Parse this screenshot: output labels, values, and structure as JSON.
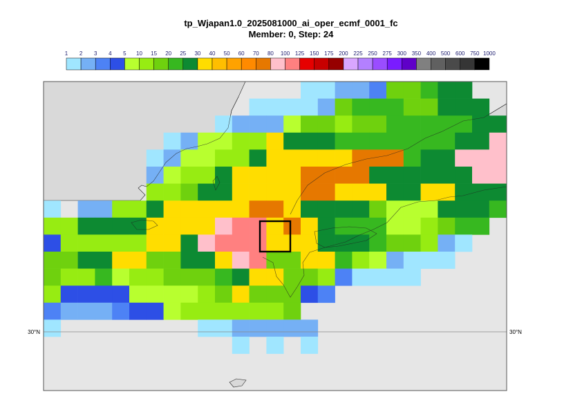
{
  "title": "tp_Wjapan1.0_2025081000_ai_oper_ecmf_0001_fc",
  "subtitle": "Member: 0, Step: 24",
  "colorbar": {
    "labels": [
      "1",
      "2",
      "3",
      "4",
      "5",
      "10",
      "15",
      "20",
      "25",
      "30",
      "40",
      "50",
      "60",
      "70",
      "80",
      "100",
      "125",
      "150",
      "175",
      "200",
      "225",
      "250",
      "275",
      "300",
      "350",
      "400",
      "500",
      "600",
      "750",
      "1000"
    ],
    "colors": [
      "#a0e6ff",
      "#75b0f5",
      "#4d82f5",
      "#2d4fe6",
      "#b8ff2f",
      "#97ec12",
      "#6fd10e",
      "#37b820",
      "#0d8a32",
      "#ffdd00",
      "#ffbe00",
      "#ffa200",
      "#ff8a00",
      "#e67800",
      "#ffc0cb",
      "#ff8080",
      "#e60000",
      "#c80000",
      "#960000",
      "#d9a6ff",
      "#b380ff",
      "#9a4dff",
      "#7a1cff",
      "#5f00c8",
      "#808080",
      "#606060",
      "#4a4a4a",
      "#353535",
      "#000000"
    ]
  },
  "axis": {
    "lat_label_left": "30°N",
    "lat_label_right": "30°N"
  },
  "colors": {
    "land": "#d9d9d9",
    "sea": "#e6e6e6",
    "frame": "#555555",
    "highlight_box": "#000000"
  },
  "map_grid": {
    "cols": 27,
    "rows": 16,
    "levels": [
      "...............0011266788..",
      "............00001677766888.",
      "..........01114665667777788",
      ".......0144559888777777788E",
      "......014455899999DDD788EEE",
      "......145589999DDDD888888EE",
      "......556889999DD9998899888",
      "0.1155899999DD9888864448887",
      "5588889999EFF9D98777445677.",
      "355555998EFFF999888766510..",
      "66889966889EF66997541000...",
      "6557455666789966520000.....",
      "53333444456966632..........",
      "211123345555556............",
      "0........0011111...........",
      "...........0.0.0..........."
    ],
    "level_colors": {
      "0": "#a0e6ff",
      "1": "#75b0f5",
      "2": "#4d82f5",
      "3": "#2d4fe6",
      "4": "#b8ff2f",
      "5": "#97ec12",
      "6": "#6fd10e",
      "7": "#37b820",
      "8": "#0d8a32",
      "9": "#ffdd00",
      "A": "#ffbe00",
      "B": "#ffa200",
      "C": "#ff8a00",
      "D": "#e67800",
      "E": "#ffc0cb",
      "F": "#ff8080"
    }
  }
}
